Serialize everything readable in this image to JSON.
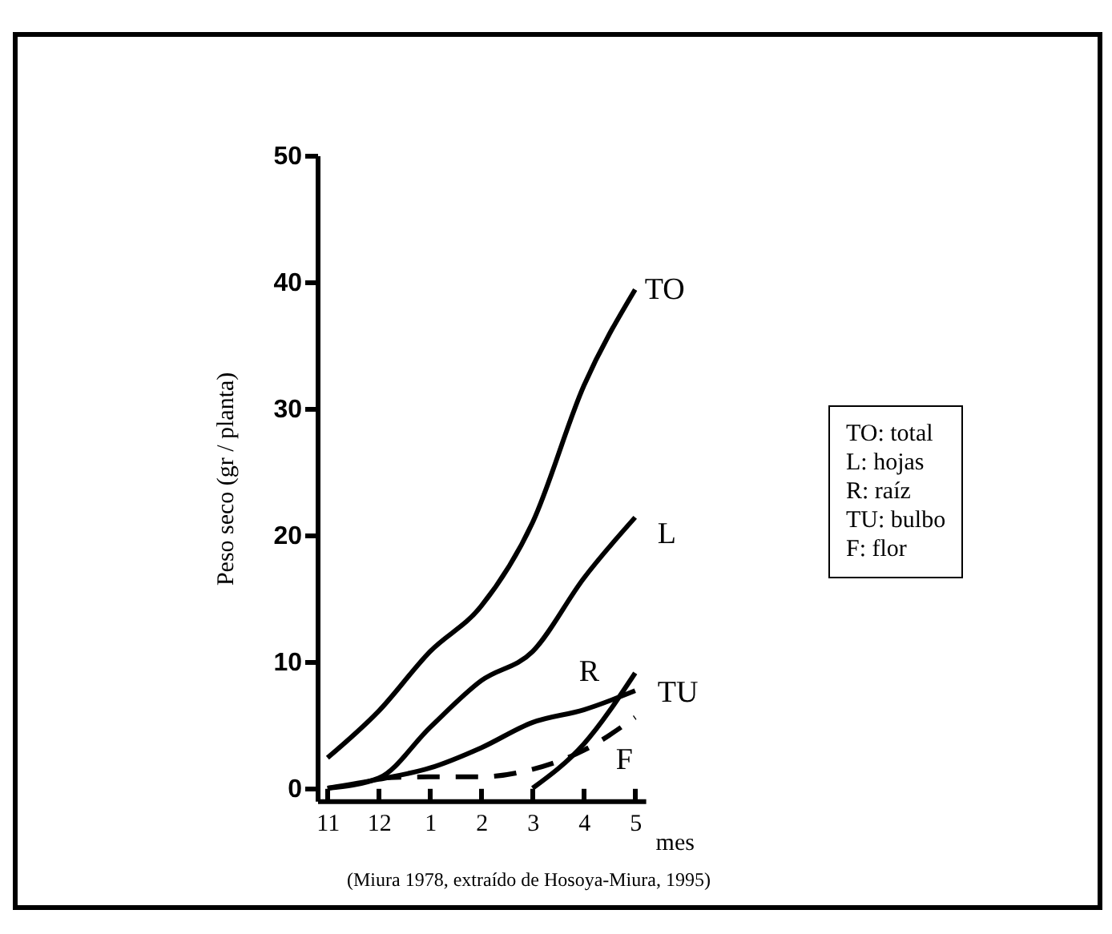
{
  "chart_data": {
    "type": "line",
    "ylabel": "Peso seco (gr / planta)",
    "xlabel": "mes",
    "categories": [
      "11",
      "12",
      "1",
      "2",
      "3",
      "4",
      "5"
    ],
    "ylim": [
      -1,
      50
    ],
    "yticks": [
      0,
      10,
      20,
      30,
      40,
      50
    ],
    "grid": false,
    "legend": "right",
    "series": [
      {
        "name": "TO",
        "color": "#000000",
        "line_style": "solid",
        "values": [
          2.4,
          6.1,
          10.8,
          14.4,
          21,
          31.8,
          39.4
        ]
      },
      {
        "name": "L",
        "color": "#000000",
        "line_style": "solid",
        "values": [
          0,
          0.8,
          4.8,
          8.5,
          10.8,
          16.6,
          21.4
        ]
      },
      {
        "name": "R",
        "color": "#000000",
        "line_style": "solid",
        "values": [
          0,
          0.7,
          1.6,
          3.2,
          5.2,
          6.2,
          7.7
        ]
      },
      {
        "name": "TU",
        "color": "#000000",
        "line_style": "solid",
        "values": [
          null,
          null,
          null,
          null,
          0,
          3.5,
          9.1
        ]
      },
      {
        "name": "F",
        "color": "#000000",
        "line_style": "dashed",
        "values": [
          null,
          0.8,
          0.9,
          0.9,
          1.5,
          3,
          5.6
        ]
      }
    ],
    "annotations": [
      "TO: total",
      "L: hojas",
      "R: raíz",
      "TU: bulbo",
      "F: flor",
      "(Miura 1978, extraído de Hosoya-Miura, 1995)"
    ]
  }
}
